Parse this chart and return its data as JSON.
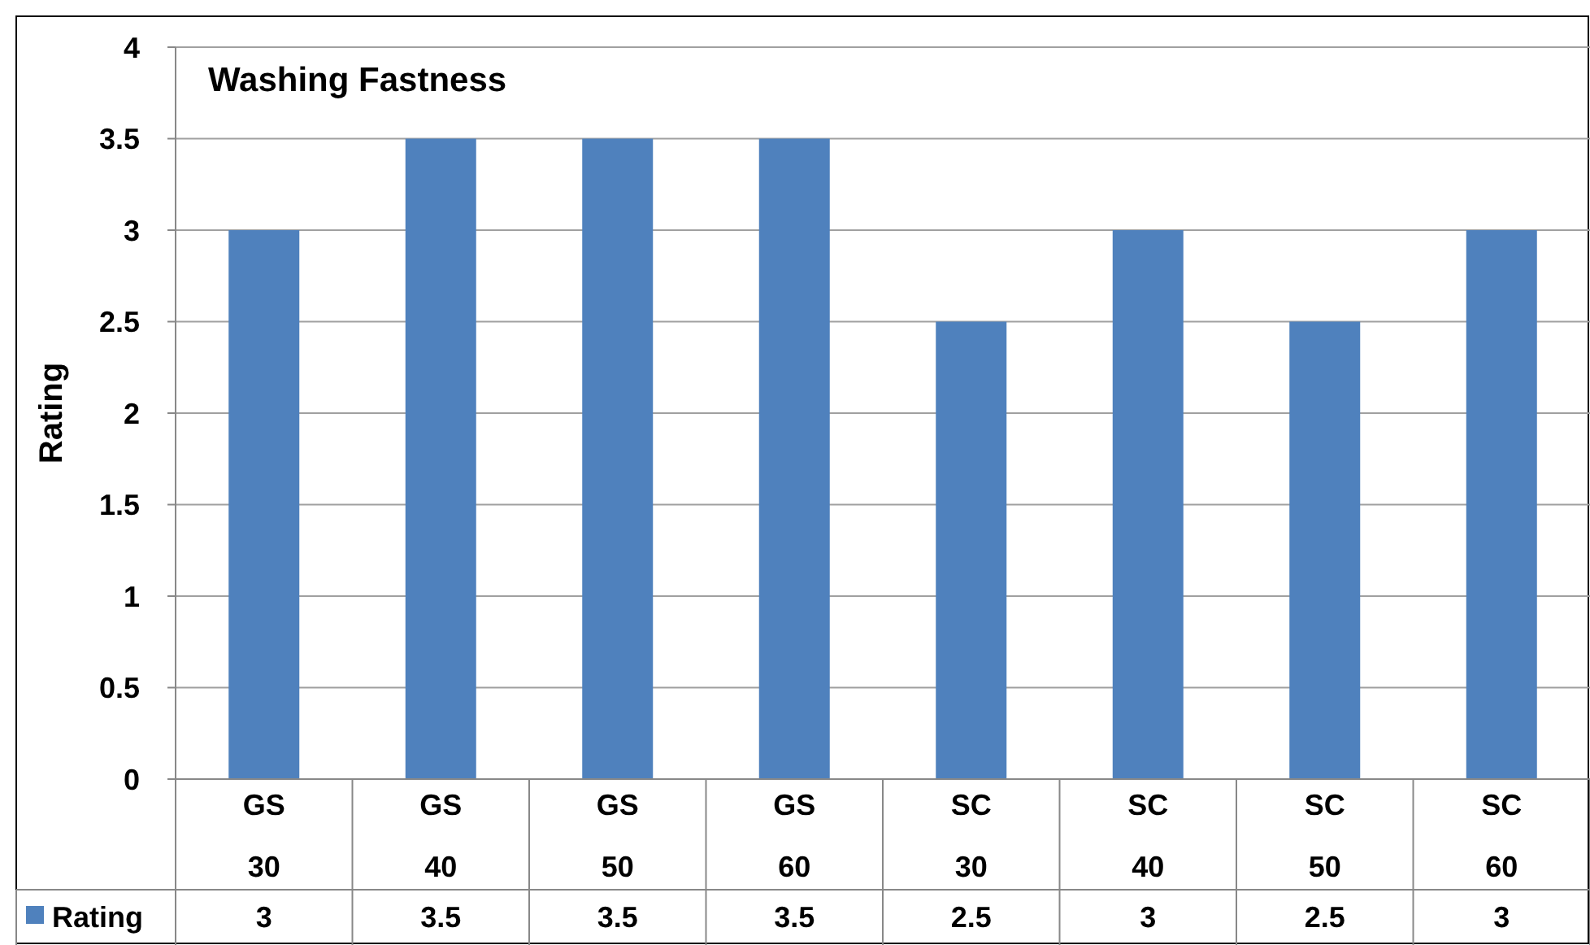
{
  "chart_data": {
    "type": "bar",
    "title": "Washing Fastness",
    "ylabel": "Rating",
    "categories": [
      "GS\n30",
      "GS\n40",
      "GS\n50",
      "GS\n60",
      "SC\n30",
      "SC\n40",
      "SC\n50",
      "SC\n60"
    ],
    "series": [
      {
        "name": "Rating",
        "color": "#4f81bd",
        "values": [
          3,
          3.5,
          3.5,
          3.5,
          2.5,
          3,
          2.5,
          3
        ]
      }
    ],
    "ylim": [
      0,
      4
    ],
    "yticks": [
      0,
      0.5,
      1,
      1.5,
      2,
      2.5,
      3,
      3.5,
      4
    ],
    "grid": "y",
    "data_labels": true,
    "legend": "bottom left"
  }
}
